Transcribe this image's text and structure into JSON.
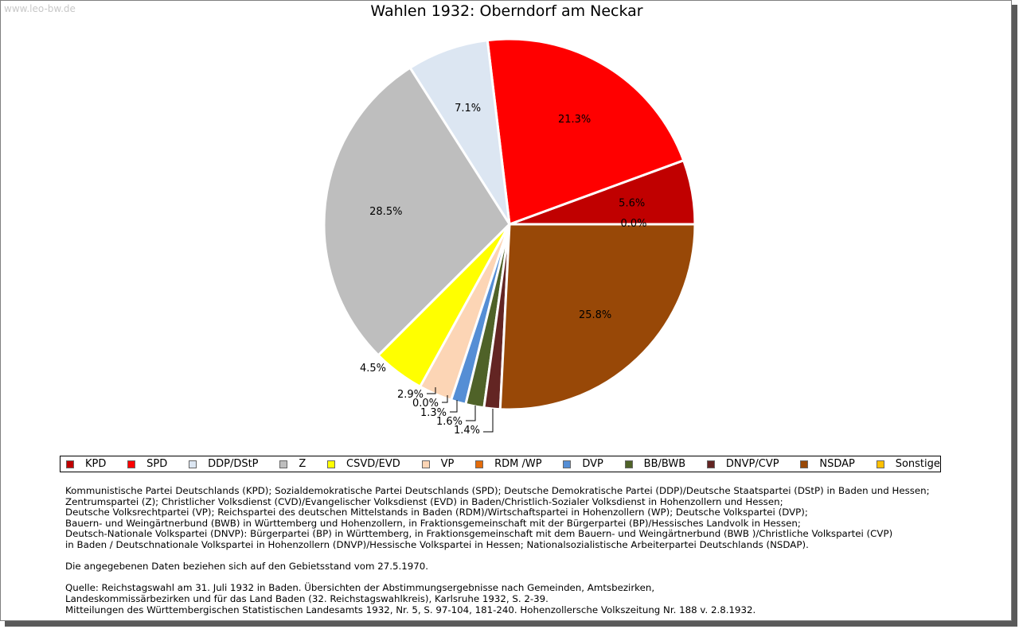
{
  "watermark": "www.leo-bw.de",
  "chart_data": {
    "type": "pie",
    "title": "Wahlen 1932: Oberndorf am Neckar",
    "slices": [
      {
        "label": "KPD",
        "value": 5.6,
        "display": "5.6%",
        "color": "#c00000"
      },
      {
        "label": "SPD",
        "value": 21.3,
        "display": "21.3%",
        "color": "#ff0000"
      },
      {
        "label": "DDP/DStP",
        "value": 7.1,
        "display": "7.1%",
        "color": "#dce6f2"
      },
      {
        "label": "Z",
        "value": 28.5,
        "display": "28.5%",
        "color": "#bebebe"
      },
      {
        "label": "CSVD/EVD",
        "value": 4.5,
        "display": "4.5%",
        "color": "#ffff00"
      },
      {
        "label": "VP",
        "value": 2.9,
        "display": "2.9%",
        "color": "#fcd5b5"
      },
      {
        "label": "RDM /WP",
        "value": 0.0,
        "display": "0.0%",
        "color": "#e46c0a"
      },
      {
        "label": "DVP",
        "value": 1.3,
        "display": "1.3%",
        "color": "#558ed5"
      },
      {
        "label": "BB/BWB",
        "value": 1.6,
        "display": "1.6%",
        "color": "#4f6228"
      },
      {
        "label": "DNVP/CVP",
        "value": 1.4,
        "display": "1.4%",
        "color": "#632523"
      },
      {
        "label": "NSDAP",
        "value": 25.8,
        "display": "25.8%",
        "color": "#984807"
      },
      {
        "label": "Sonstige",
        "value": 0.0,
        "display": "0.0%",
        "color": "#ffc000"
      }
    ],
    "start": "right (3 o'clock)",
    "direction": "counterclockwise",
    "legend_position": "bottom"
  },
  "notes": [
    "Kommunistische Partei Deutschlands (KPD); Sozialdemokratische Partei Deutschlands (SPD); Deutsche Demokratische Partei (DDP)/Deutsche Staatspartei (DStP) in Baden und Hessen;",
    "Zentrumspartei (Z); Christlicher Volksdienst (CVD)/Evangelischer Volksdienst (EVD) in Baden/Christlich-Sozialer Volksdienst in Hohenzollern und Hessen;",
    "Deutsche Volksrechtpartei (VP); Reichspartei des deutschen Mittelstands in Baden (RDM)/Wirtschaftspartei in Hohenzollern (WP); Deutsche Volkspartei (DVP);",
    "Bauern- und Weingärtnerbund (BWB) in Württemberg und Hohenzollern, in Fraktionsgemeinschaft mit der Bürgerpartei (BP)/Hessisches Landvolk in Hessen;",
    "Deutsch-Nationale Volkspartei (DNVP): Bürgerpartei (BP) in Württemberg, in Fraktionsgemeinschaft mit dem Bauern- und Weingärtnerbund (BWB )/Christliche Volkspartei (CVP)",
    "in Baden / Deutschnationale Volkspartei in Hohenzollern (DNVP)/Hessische Volkspartei in Hessen; Nationalsozialistische Arbeiterpartei Deutschlands (NSDAP).",
    "",
    "Die angegebenen Daten beziehen sich auf den Gebietsstand vom 27.5.1970.",
    "",
    "Quelle: Reichstagswahl am 31. Juli 1932 in Baden. Übersichten der Abstimmungsergebnisse nach Gemeinden, Amtsbezirken,",
    "Landeskommissärbezirken und für das Land Baden (32. Reichstagswahlkreis), Karlsruhe 1932, S. 2-39.",
    "Mitteilungen des Württembergischen Statistischen Landesamts 1932, Nr. 5, S. 97-104, 181-240. Hohenzollersche Volkszeitung Nr. 188 v. 2.8.1932."
  ]
}
